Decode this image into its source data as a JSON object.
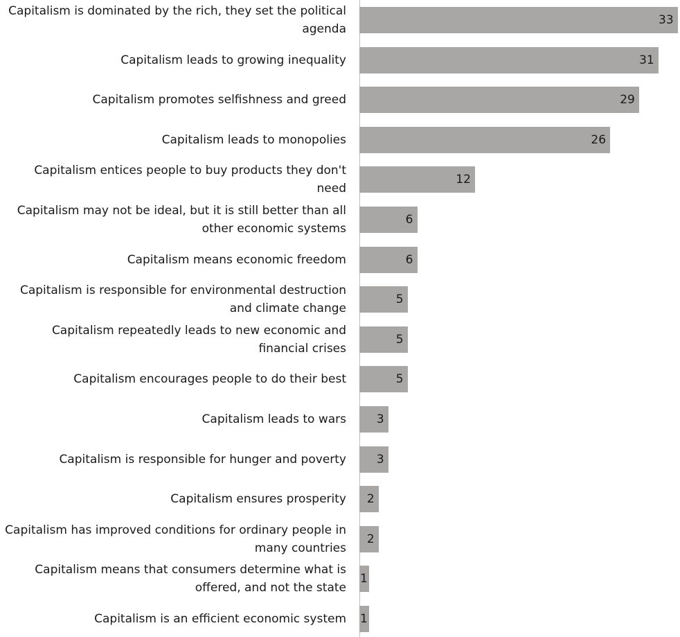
{
  "chart_data": {
    "type": "bar",
    "orientation": "horizontal",
    "categories": [
      "Capitalism is dominated by the rich, they set the political agenda",
      "Capitalism leads to growing inequality",
      "Capitalism promotes selfishness and greed",
      "Capitalism leads to monopolies",
      "Capitalism entices people to buy products they don't need",
      "Capitalism may not be ideal, but it is still better than all other economic systems",
      "Capitalism means economic freedom",
      "Capitalism is responsible for environmental destruction and climate change",
      "Capitalism repeatedly leads to new economic and financial crises",
      "Capitalism encourages people to do their best",
      "Capitalism leads to wars",
      "Capitalism is responsible for hunger and poverty",
      "Capitalism ensures prosperity",
      "Capitalism has improved conditions for ordinary people in many countries",
      "Capitalism means that consumers determine what is offered, and not the state",
      "Capitalism is an efficient economic system"
    ],
    "values": [
      33,
      31,
      29,
      26,
      12,
      6,
      6,
      5,
      5,
      5,
      3,
      3,
      2,
      2,
      1,
      1
    ],
    "value_labels": [
      "33",
      "31",
      "29",
      "26",
      "12",
      "6",
      "6",
      "5",
      "5",
      "5",
      "3",
      "3",
      "2",
      "2",
      "1",
      "1"
    ],
    "xlim": [
      0,
      33
    ],
    "grid": false,
    "legend": "none",
    "bar_color": "#a9a6a6",
    "text_color": "#1a1a1a"
  }
}
